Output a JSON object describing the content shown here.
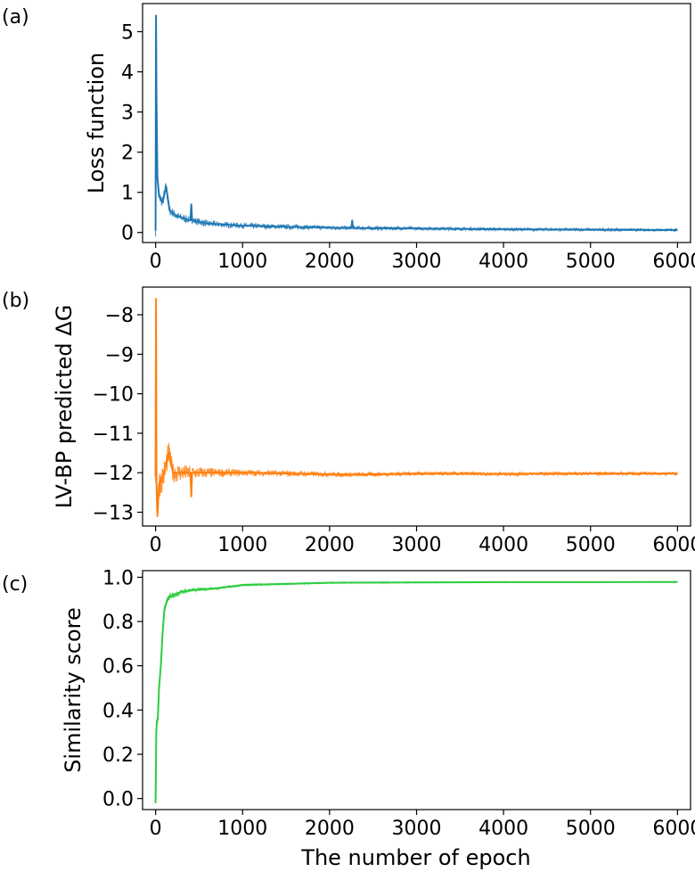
{
  "figure": {
    "xlabel": "The number of epoch"
  },
  "chart_data": [
    {
      "type": "line",
      "panel_label": "(a)",
      "title": "",
      "xlabel": "",
      "ylabel": "Loss function",
      "xlim": [
        -150,
        6150
      ],
      "ylim": [
        -0.25,
        5.7
      ],
      "xticks": [
        0,
        1000,
        2000,
        3000,
        4000,
        5000,
        6000
      ],
      "yticks": [
        0,
        1,
        2,
        3,
        4,
        5
      ],
      "grid": false,
      "legend": "none",
      "series": [
        {
          "color": "#1f77b4",
          "noise_band": [
            [
              0,
              0.3
            ],
            [
              100,
              0.3
            ],
            [
              200,
              0.22
            ],
            [
              400,
              0.18
            ],
            [
              700,
              0.15
            ],
            [
              1000,
              0.13
            ],
            [
              2000,
              0.1
            ],
            [
              3000,
              0.08
            ],
            [
              4000,
              0.07
            ],
            [
              6000,
              0.06
            ]
          ],
          "points": [
            [
              0,
              0.05
            ],
            [
              5,
              5.4
            ],
            [
              10,
              3.4
            ],
            [
              20,
              1.4
            ],
            [
              40,
              0.9
            ],
            [
              80,
              0.75
            ],
            [
              120,
              1.15
            ],
            [
              160,
              0.55
            ],
            [
              250,
              0.4
            ],
            [
              400,
              0.3
            ],
            [
              410,
              0.7
            ],
            [
              420,
              0.3
            ],
            [
              600,
              0.22
            ],
            [
              1000,
              0.17
            ],
            [
              1500,
              0.14
            ],
            [
              2000,
              0.12
            ],
            [
              2250,
              0.11
            ],
            [
              2260,
              0.3
            ],
            [
              2270,
              0.11
            ],
            [
              3000,
              0.1
            ],
            [
              4000,
              0.08
            ],
            [
              5000,
              0.07
            ],
            [
              6000,
              0.06
            ]
          ]
        }
      ]
    },
    {
      "type": "line",
      "panel_label": "(b)",
      "title": "",
      "xlabel": "",
      "ylabel": "LV-BP predicted ΔG",
      "xlim": [
        -150,
        6150
      ],
      "ylim": [
        -13.35,
        -7.3
      ],
      "xticks": [
        0,
        1000,
        2000,
        3000,
        4000,
        5000,
        6000
      ],
      "yticks": [
        -8,
        -9,
        -10,
        -11,
        -12,
        -13
      ],
      "grid": false,
      "legend": "none",
      "series": [
        {
          "color": "#ff7f0e",
          "noise_band": [
            [
              0,
              0.8
            ],
            [
              100,
              0.7
            ],
            [
              200,
              0.5
            ],
            [
              400,
              0.35
            ],
            [
              700,
              0.22
            ],
            [
              1000,
              0.16
            ],
            [
              2000,
              0.12
            ],
            [
              3000,
              0.1
            ],
            [
              4000,
              0.09
            ],
            [
              6000,
              0.08
            ]
          ],
          "points": [
            [
              0,
              -12.1
            ],
            [
              5,
              -7.6
            ],
            [
              10,
              -12.2
            ],
            [
              20,
              -13.1
            ],
            [
              40,
              -12.3
            ],
            [
              100,
              -12.0
            ],
            [
              150,
              -11.5
            ],
            [
              200,
              -12.0
            ],
            [
              400,
              -12.0
            ],
            [
              410,
              -12.6
            ],
            [
              420,
              -12.0
            ],
            [
              1000,
              -12.0
            ],
            [
              2260,
              -12.05
            ],
            [
              3000,
              -12.02
            ],
            [
              4000,
              -12.03
            ],
            [
              5000,
              -12.02
            ],
            [
              6000,
              -12.02
            ]
          ]
        }
      ]
    },
    {
      "type": "line",
      "panel_label": "(c)",
      "title": "",
      "xlabel": "The number of epoch",
      "ylabel": "Similarity score",
      "xlim": [
        -150,
        6150
      ],
      "ylim": [
        -0.05,
        1.03
      ],
      "xticks": [
        0,
        1000,
        2000,
        3000,
        4000,
        5000,
        6000
      ],
      "yticks": [
        0.0,
        0.2,
        0.4,
        0.6,
        0.8,
        1.0
      ],
      "grid": false,
      "legend": "none",
      "series": [
        {
          "color": "#2ecc40",
          "noise_band": [
            [
              0,
              0.05
            ],
            [
              100,
              0.04
            ],
            [
              300,
              0.02
            ],
            [
              600,
              0.012
            ],
            [
              1000,
              0.008
            ],
            [
              2000,
              0.005
            ],
            [
              6000,
              0.003
            ]
          ],
          "points": [
            [
              0,
              -0.02
            ],
            [
              8,
              0.3
            ],
            [
              15,
              0.35
            ],
            [
              25,
              0.36
            ],
            [
              40,
              0.5
            ],
            [
              60,
              0.6
            ],
            [
              80,
              0.75
            ],
            [
              100,
              0.85
            ],
            [
              120,
              0.88
            ],
            [
              150,
              0.91
            ],
            [
              200,
              0.92
            ],
            [
              300,
              0.935
            ],
            [
              500,
              0.945
            ],
            [
              700,
              0.95
            ],
            [
              1000,
              0.965
            ],
            [
              1500,
              0.97
            ],
            [
              2000,
              0.975
            ],
            [
              3000,
              0.977
            ],
            [
              4000,
              0.978
            ],
            [
              5000,
              0.978
            ],
            [
              6000,
              0.979
            ]
          ]
        }
      ]
    }
  ]
}
